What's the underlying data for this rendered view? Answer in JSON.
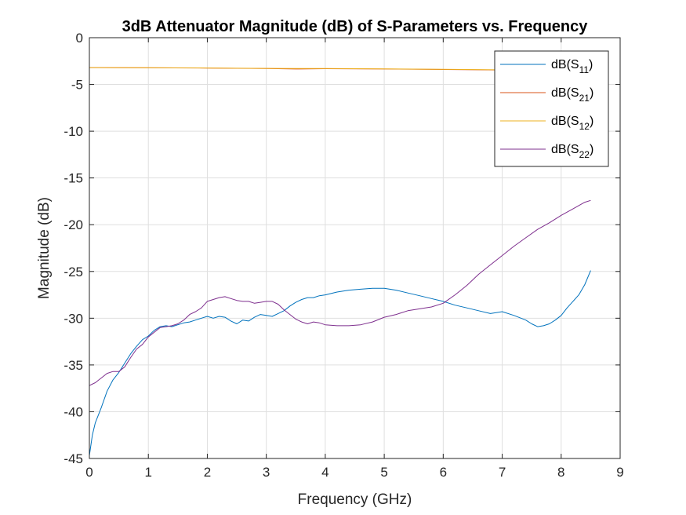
{
  "chart_data": {
    "type": "line",
    "title": "3dB Attenuator Magnitude (dB) of S-Parameters vs. Frequency",
    "xlabel": "Frequency (GHz)",
    "ylabel": "Magnitude (dB)",
    "xlim": [
      0,
      9
    ],
    "ylim": [
      -45,
      0
    ],
    "xticks": [
      0,
      1,
      2,
      3,
      4,
      5,
      6,
      7,
      8,
      9
    ],
    "yticks": [
      0,
      -5,
      -10,
      -15,
      -20,
      -25,
      -30,
      -35,
      -40,
      -45
    ],
    "grid": true,
    "legend_position": "top-right",
    "series": [
      {
        "name": "dB(S11)",
        "legend_main": "dB(S",
        "legend_sub": "11",
        "legend_close": ")",
        "color": "#0072BD",
        "x": [
          0,
          0.05,
          0.1,
          0.2,
          0.3,
          0.4,
          0.5,
          0.6,
          0.7,
          0.8,
          0.9,
          1.0,
          1.1,
          1.2,
          1.3,
          1.4,
          1.5,
          1.6,
          1.7,
          1.8,
          1.9,
          2.0,
          2.1,
          2.2,
          2.3,
          2.4,
          2.5,
          2.6,
          2.7,
          2.8,
          2.9,
          3.0,
          3.1,
          3.2,
          3.3,
          3.4,
          3.5,
          3.6,
          3.7,
          3.8,
          3.9,
          4.0,
          4.2,
          4.4,
          4.6,
          4.8,
          5.0,
          5.2,
          5.4,
          5.6,
          5.8,
          6.0,
          6.2,
          6.4,
          6.6,
          6.8,
          7.0,
          7.2,
          7.4,
          7.5,
          7.6,
          7.7,
          7.8,
          7.9,
          8.0,
          8.1,
          8.2,
          8.3,
          8.4,
          8.5
        ],
        "y": [
          -44.7,
          -42.5,
          -41.2,
          -39.6,
          -37.8,
          -36.6,
          -35.8,
          -34.8,
          -33.8,
          -33.0,
          -32.3,
          -31.9,
          -31.3,
          -30.9,
          -30.8,
          -30.9,
          -30.7,
          -30.5,
          -30.4,
          -30.2,
          -30.0,
          -29.8,
          -30.0,
          -29.8,
          -29.9,
          -30.3,
          -30.6,
          -30.2,
          -30.3,
          -29.9,
          -29.6,
          -29.7,
          -29.8,
          -29.5,
          -29.2,
          -28.7,
          -28.3,
          -28.0,
          -27.8,
          -27.8,
          -27.6,
          -27.5,
          -27.2,
          -27.0,
          -26.9,
          -26.8,
          -26.8,
          -27.0,
          -27.3,
          -27.6,
          -27.9,
          -28.2,
          -28.6,
          -28.9,
          -29.2,
          -29.5,
          -29.3,
          -29.7,
          -30.2,
          -30.6,
          -30.9,
          -30.8,
          -30.6,
          -30.2,
          -29.7,
          -28.9,
          -28.2,
          -27.5,
          -26.4,
          -24.9
        ]
      },
      {
        "name": "dB(S21)",
        "legend_main": "dB(S",
        "legend_sub": "21",
        "legend_close": ")",
        "color": "#D95319",
        "x": [
          0,
          1,
          2,
          3,
          3.5,
          4,
          5,
          6,
          7,
          8,
          8.5
        ],
        "y": [
          -3.2,
          -3.22,
          -3.25,
          -3.3,
          -3.35,
          -3.32,
          -3.35,
          -3.4,
          -3.45,
          -3.48,
          -3.5
        ]
      },
      {
        "name": "dB(S12)",
        "legend_main": "dB(S",
        "legend_sub": "12",
        "legend_close": ")",
        "color": "#EDB120",
        "x": [
          0,
          1,
          2,
          3,
          3.5,
          4,
          5,
          6,
          7,
          8,
          8.5
        ],
        "y": [
          -3.2,
          -3.21,
          -3.24,
          -3.28,
          -3.3,
          -3.3,
          -3.33,
          -3.38,
          -3.43,
          -3.47,
          -3.49
        ]
      },
      {
        "name": "dB(S22)",
        "legend_main": "dB(S",
        "legend_sub": "22",
        "legend_close": ")",
        "color": "#7E2F8E",
        "x": [
          0,
          0.1,
          0.2,
          0.3,
          0.4,
          0.5,
          0.6,
          0.7,
          0.8,
          0.9,
          1.0,
          1.1,
          1.2,
          1.3,
          1.4,
          1.5,
          1.6,
          1.7,
          1.8,
          1.9,
          2.0,
          2.1,
          2.2,
          2.3,
          2.4,
          2.5,
          2.6,
          2.7,
          2.8,
          2.9,
          3.0,
          3.1,
          3.2,
          3.3,
          3.4,
          3.5,
          3.6,
          3.7,
          3.8,
          3.9,
          4.0,
          4.2,
          4.4,
          4.6,
          4.8,
          5.0,
          5.2,
          5.4,
          5.6,
          5.8,
          6.0,
          6.2,
          6.4,
          6.6,
          6.8,
          7.0,
          7.2,
          7.4,
          7.6,
          7.8,
          8.0,
          8.2,
          8.4,
          8.5
        ],
        "y": [
          -37.2,
          -36.9,
          -36.4,
          -35.9,
          -35.7,
          -35.7,
          -35.2,
          -34.2,
          -33.3,
          -32.8,
          -32.0,
          -31.5,
          -31.0,
          -30.9,
          -30.8,
          -30.6,
          -30.2,
          -29.6,
          -29.3,
          -28.9,
          -28.2,
          -28.0,
          -27.8,
          -27.7,
          -27.9,
          -28.1,
          -28.2,
          -28.2,
          -28.4,
          -28.3,
          -28.2,
          -28.2,
          -28.5,
          -29.1,
          -29.6,
          -30.1,
          -30.4,
          -30.6,
          -30.4,
          -30.5,
          -30.7,
          -30.8,
          -30.8,
          -30.7,
          -30.4,
          -29.9,
          -29.6,
          -29.2,
          -29.0,
          -28.8,
          -28.4,
          -27.5,
          -26.5,
          -25.3,
          -24.3,
          -23.3,
          -22.3,
          -21.4,
          -20.5,
          -19.8,
          -19.0,
          -18.3,
          -17.6,
          -17.4
        ]
      }
    ]
  }
}
